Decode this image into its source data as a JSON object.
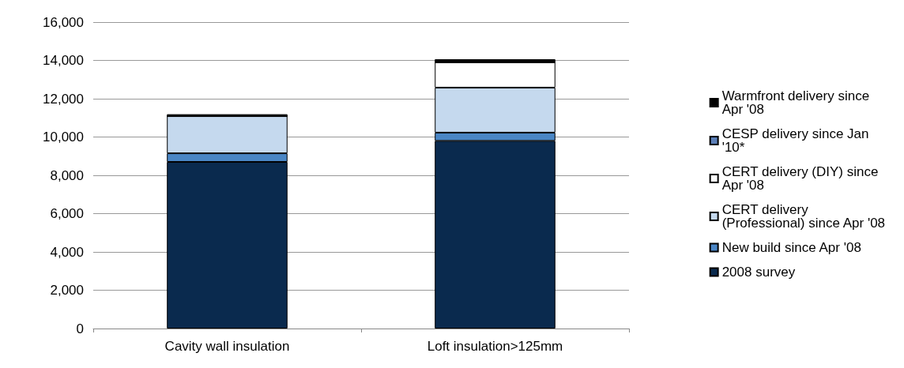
{
  "chart_data": {
    "type": "bar",
    "stacked": true,
    "categories": [
      "Cavity wall insulation",
      "Loft insulation>125mm"
    ],
    "series": [
      {
        "name": "2008 survey",
        "color": "#0a2a4e",
        "values": [
          8700,
          9800
        ]
      },
      {
        "name": "New build since Apr '08",
        "color": "#4a86c5",
        "values": [
          450,
          430
        ]
      },
      {
        "name": "CERT delivery (Professional) since Apr '08",
        "color": "#c5d9ee",
        "values": [
          1940,
          2350
        ]
      },
      {
        "name": "CERT delivery (DIY) since Apr '08",
        "color": "#ffffff",
        "values": [
          0,
          1320
        ]
      },
      {
        "name": "CESP delivery since Jan '10*",
        "color": "#5b7fb8",
        "values": [
          0,
          0
        ]
      },
      {
        "name": "Warmfront delivery since Apr '08",
        "color": "#000000",
        "values": [
          100,
          160
        ]
      }
    ],
    "ylim": [
      0,
      16000
    ],
    "yticks": [
      0,
      {
        "value": 2000,
        "label": "2,000"
      },
      {
        "value": 4000,
        "label": "4,000"
      },
      {
        "value": 6000,
        "label": "6,000"
      },
      {
        "value": 8000,
        "label": "8,000"
      },
      {
        "value": 10000,
        "label": "10,000"
      },
      {
        "value": 12000,
        "label": "12,000"
      },
      {
        "value": 14000,
        "label": "14,000"
      },
      {
        "value": 16000,
        "label": "16,000"
      }
    ],
    "grid": "y",
    "legend": "right"
  }
}
